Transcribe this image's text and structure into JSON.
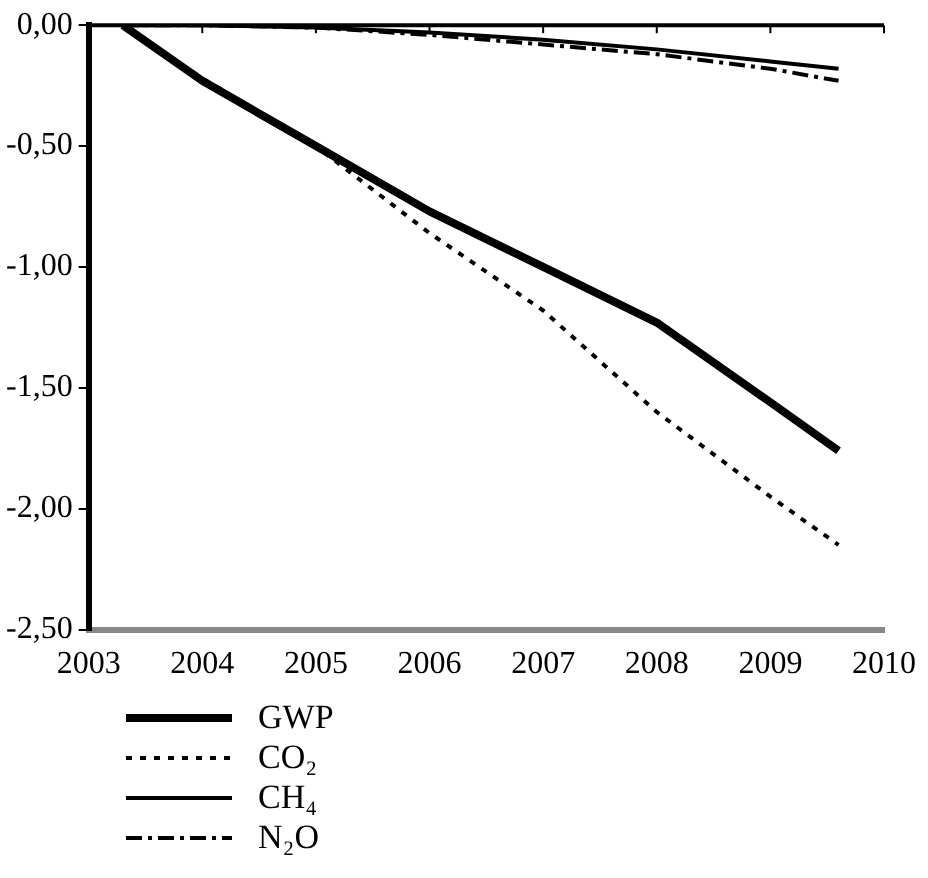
{
  "chart_data": {
    "type": "line",
    "xlim": [
      2003,
      2010
    ],
    "xticks": [
      2003,
      2004,
      2005,
      2006,
      2007,
      2008,
      2009,
      2010
    ],
    "ylim": [
      -2.5,
      0
    ],
    "yticks": [
      {
        "value": -2.5,
        "label": "-2,50"
      },
      {
        "value": -2,
        "label": "-2,00"
      },
      {
        "value": -1.5,
        "label": "-1,50"
      },
      {
        "value": -1,
        "label": "-1,00"
      },
      {
        "value": -0.5,
        "label": "-0,50"
      },
      {
        "value": 0,
        "label": "0,00"
      }
    ],
    "grid": false,
    "legend": "bottom left",
    "marker": "none",
    "series": [
      {
        "name": "GWP",
        "color": "#000000",
        "line_style": "solid",
        "x": [
          2003.3,
          2004,
          2005,
          2006,
          2007,
          2008,
          2009,
          2009.6
        ],
        "values": [
          0,
          -0.23,
          -0.5,
          -0.77,
          -1.0,
          -1.23,
          -1.56,
          -1.76
        ]
      },
      {
        "name": "CO₂",
        "color": "#000000",
        "line_style": "dotted",
        "x": [
          2003.3,
          2004,
          2005,
          2006,
          2007,
          2008,
          2009,
          2009.6
        ],
        "values": [
          0,
          -0.22,
          -0.5,
          -0.86,
          -1.18,
          -1.6,
          -1.95,
          -2.15
        ]
      },
      {
        "name": "CH₄",
        "color": "#000000",
        "line_style": "solid",
        "x": [
          2003.3,
          2004,
          2005,
          2006,
          2007,
          2008,
          2009,
          2009.6
        ],
        "values": [
          0,
          0,
          -0.01,
          -0.03,
          -0.06,
          -0.1,
          -0.15,
          -0.18
        ]
      },
      {
        "name": "N₂O",
        "color": "#000000",
        "line_style": "dashed",
        "x": [
          2003.3,
          2004,
          2005,
          2006,
          2007,
          2008,
          2009,
          2009.6
        ],
        "values": [
          0,
          0,
          -0.01,
          -0.04,
          -0.08,
          -0.12,
          -0.18,
          -0.23
        ]
      }
    ]
  }
}
